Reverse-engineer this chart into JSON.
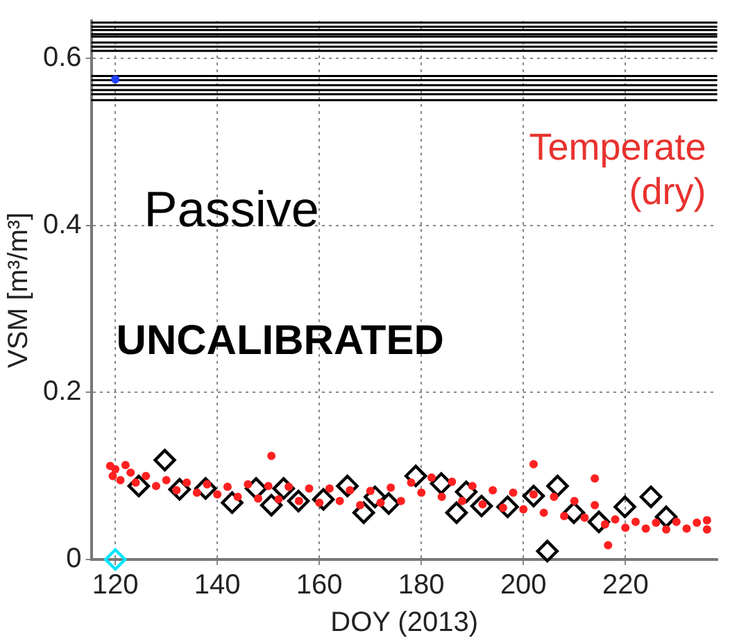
{
  "chart_data": {
    "type": "scatter",
    "xlabel": "DOY (2013)",
    "ylabel": "VSM [m³/m³]",
    "annotations": [
      "Temperate\n(dry)",
      "Passive",
      "UNCALIBRATED"
    ],
    "xlim": [
      115.3,
      238
    ],
    "ylim": [
      0,
      0.645
    ],
    "xticks": [
      120,
      140,
      160,
      180,
      200,
      220
    ],
    "yticks": [
      0,
      0.2,
      0.4,
      0.6
    ],
    "grid": true,
    "ref_lines": [
      {
        "axis": "y",
        "value": 0.643,
        "color": "#000000"
      },
      {
        "axis": "y",
        "value": 0.638,
        "color": "#000000"
      },
      {
        "axis": "y",
        "value": 0.634,
        "color": "#000000"
      },
      {
        "axis": "y",
        "value": 0.629,
        "color": "#000000"
      },
      {
        "axis": "y",
        "value": 0.626,
        "color": "#000000"
      },
      {
        "axis": "y",
        "value": 0.619,
        "color": "#000000"
      },
      {
        "axis": "y",
        "value": 0.614,
        "color": "#000000"
      },
      {
        "axis": "y",
        "value": 0.609,
        "color": "#000000"
      },
      {
        "axis": "y",
        "value": 0.579,
        "color": "#000000"
      },
      {
        "axis": "y",
        "value": 0.574,
        "color": "#000000"
      },
      {
        "axis": "y",
        "value": 0.568,
        "color": "#000000"
      },
      {
        "axis": "y",
        "value": 0.562,
        "color": "#000000"
      },
      {
        "axis": "y",
        "value": 0.557,
        "color": "#000000"
      },
      {
        "axis": "y",
        "value": 0.55,
        "color": "#000000"
      }
    ],
    "series": [
      {
        "color": "#ff2020",
        "marker": "circle",
        "x": [
          119,
          119.5,
          120,
          121,
          122,
          123,
          124,
          126,
          128,
          130,
          132,
          134,
          136,
          138,
          140,
          142,
          144,
          146,
          148,
          150,
          150.6,
          152,
          154,
          156,
          158,
          160,
          162,
          164,
          166,
          168,
          170,
          172,
          174,
          176,
          178,
          180,
          182,
          184,
          186,
          188,
          190,
          192,
          194,
          196,
          198,
          200,
          202,
          202,
          204,
          206,
          208,
          210,
          212,
          214,
          214,
          216,
          216.6,
          218,
          220,
          222,
          224,
          226,
          228,
          230,
          232,
          234,
          236,
          236
        ],
        "values": [
          0.112,
          0.1,
          0.108,
          0.095,
          0.113,
          0.104,
          0.092,
          0.1,
          0.088,
          0.095,
          0.083,
          0.092,
          0.08,
          0.09,
          0.078,
          0.087,
          0.075,
          0.09,
          0.073,
          0.088,
          0.124,
          0.072,
          0.087,
          0.07,
          0.085,
          0.068,
          0.085,
          0.07,
          0.083,
          0.065,
          0.082,
          0.068,
          0.086,
          0.07,
          0.092,
          0.08,
          0.098,
          0.075,
          0.093,
          0.07,
          0.088,
          0.066,
          0.083,
          0.062,
          0.08,
          0.06,
          0.078,
          0.114,
          0.056,
          0.075,
          0.052,
          0.07,
          0.05,
          0.065,
          0.097,
          0.042,
          0.017,
          0.048,
          0.038,
          0.045,
          0.037,
          0.044,
          0.036,
          0.045,
          0.037,
          0.044,
          0.036,
          0.047
        ]
      },
      {
        "color": "#000000",
        "marker": "diamond",
        "x": [
          124.6,
          129.7,
          132.6,
          137.7,
          142.9,
          147.6,
          150.6,
          153,
          155.9,
          160.8,
          165.5,
          168.7,
          170.9,
          173.6,
          178.9,
          183.9,
          186.9,
          188.8,
          191.8,
          196.9,
          202,
          204.7,
          206.7,
          209.9,
          214.8,
          219.9,
          225,
          228
        ],
        "values": [
          0.088,
          0.119,
          0.084,
          0.085,
          0.068,
          0.085,
          0.065,
          0.085,
          0.07,
          0.072,
          0.088,
          0.056,
          0.075,
          0.067,
          0.1,
          0.091,
          0.056,
          0.081,
          0.064,
          0.063,
          0.076,
          0.01,
          0.088,
          0.056,
          0.045,
          0.063,
          0.075,
          0.051
        ]
      },
      {
        "color": "#00e5ff",
        "marker": "diamond",
        "x": [
          120
        ],
        "values": [
          0
        ]
      },
      {
        "color": "#1f3fff",
        "marker": "circle",
        "x": [
          120
        ],
        "values": [
          0.575
        ]
      }
    ]
  }
}
